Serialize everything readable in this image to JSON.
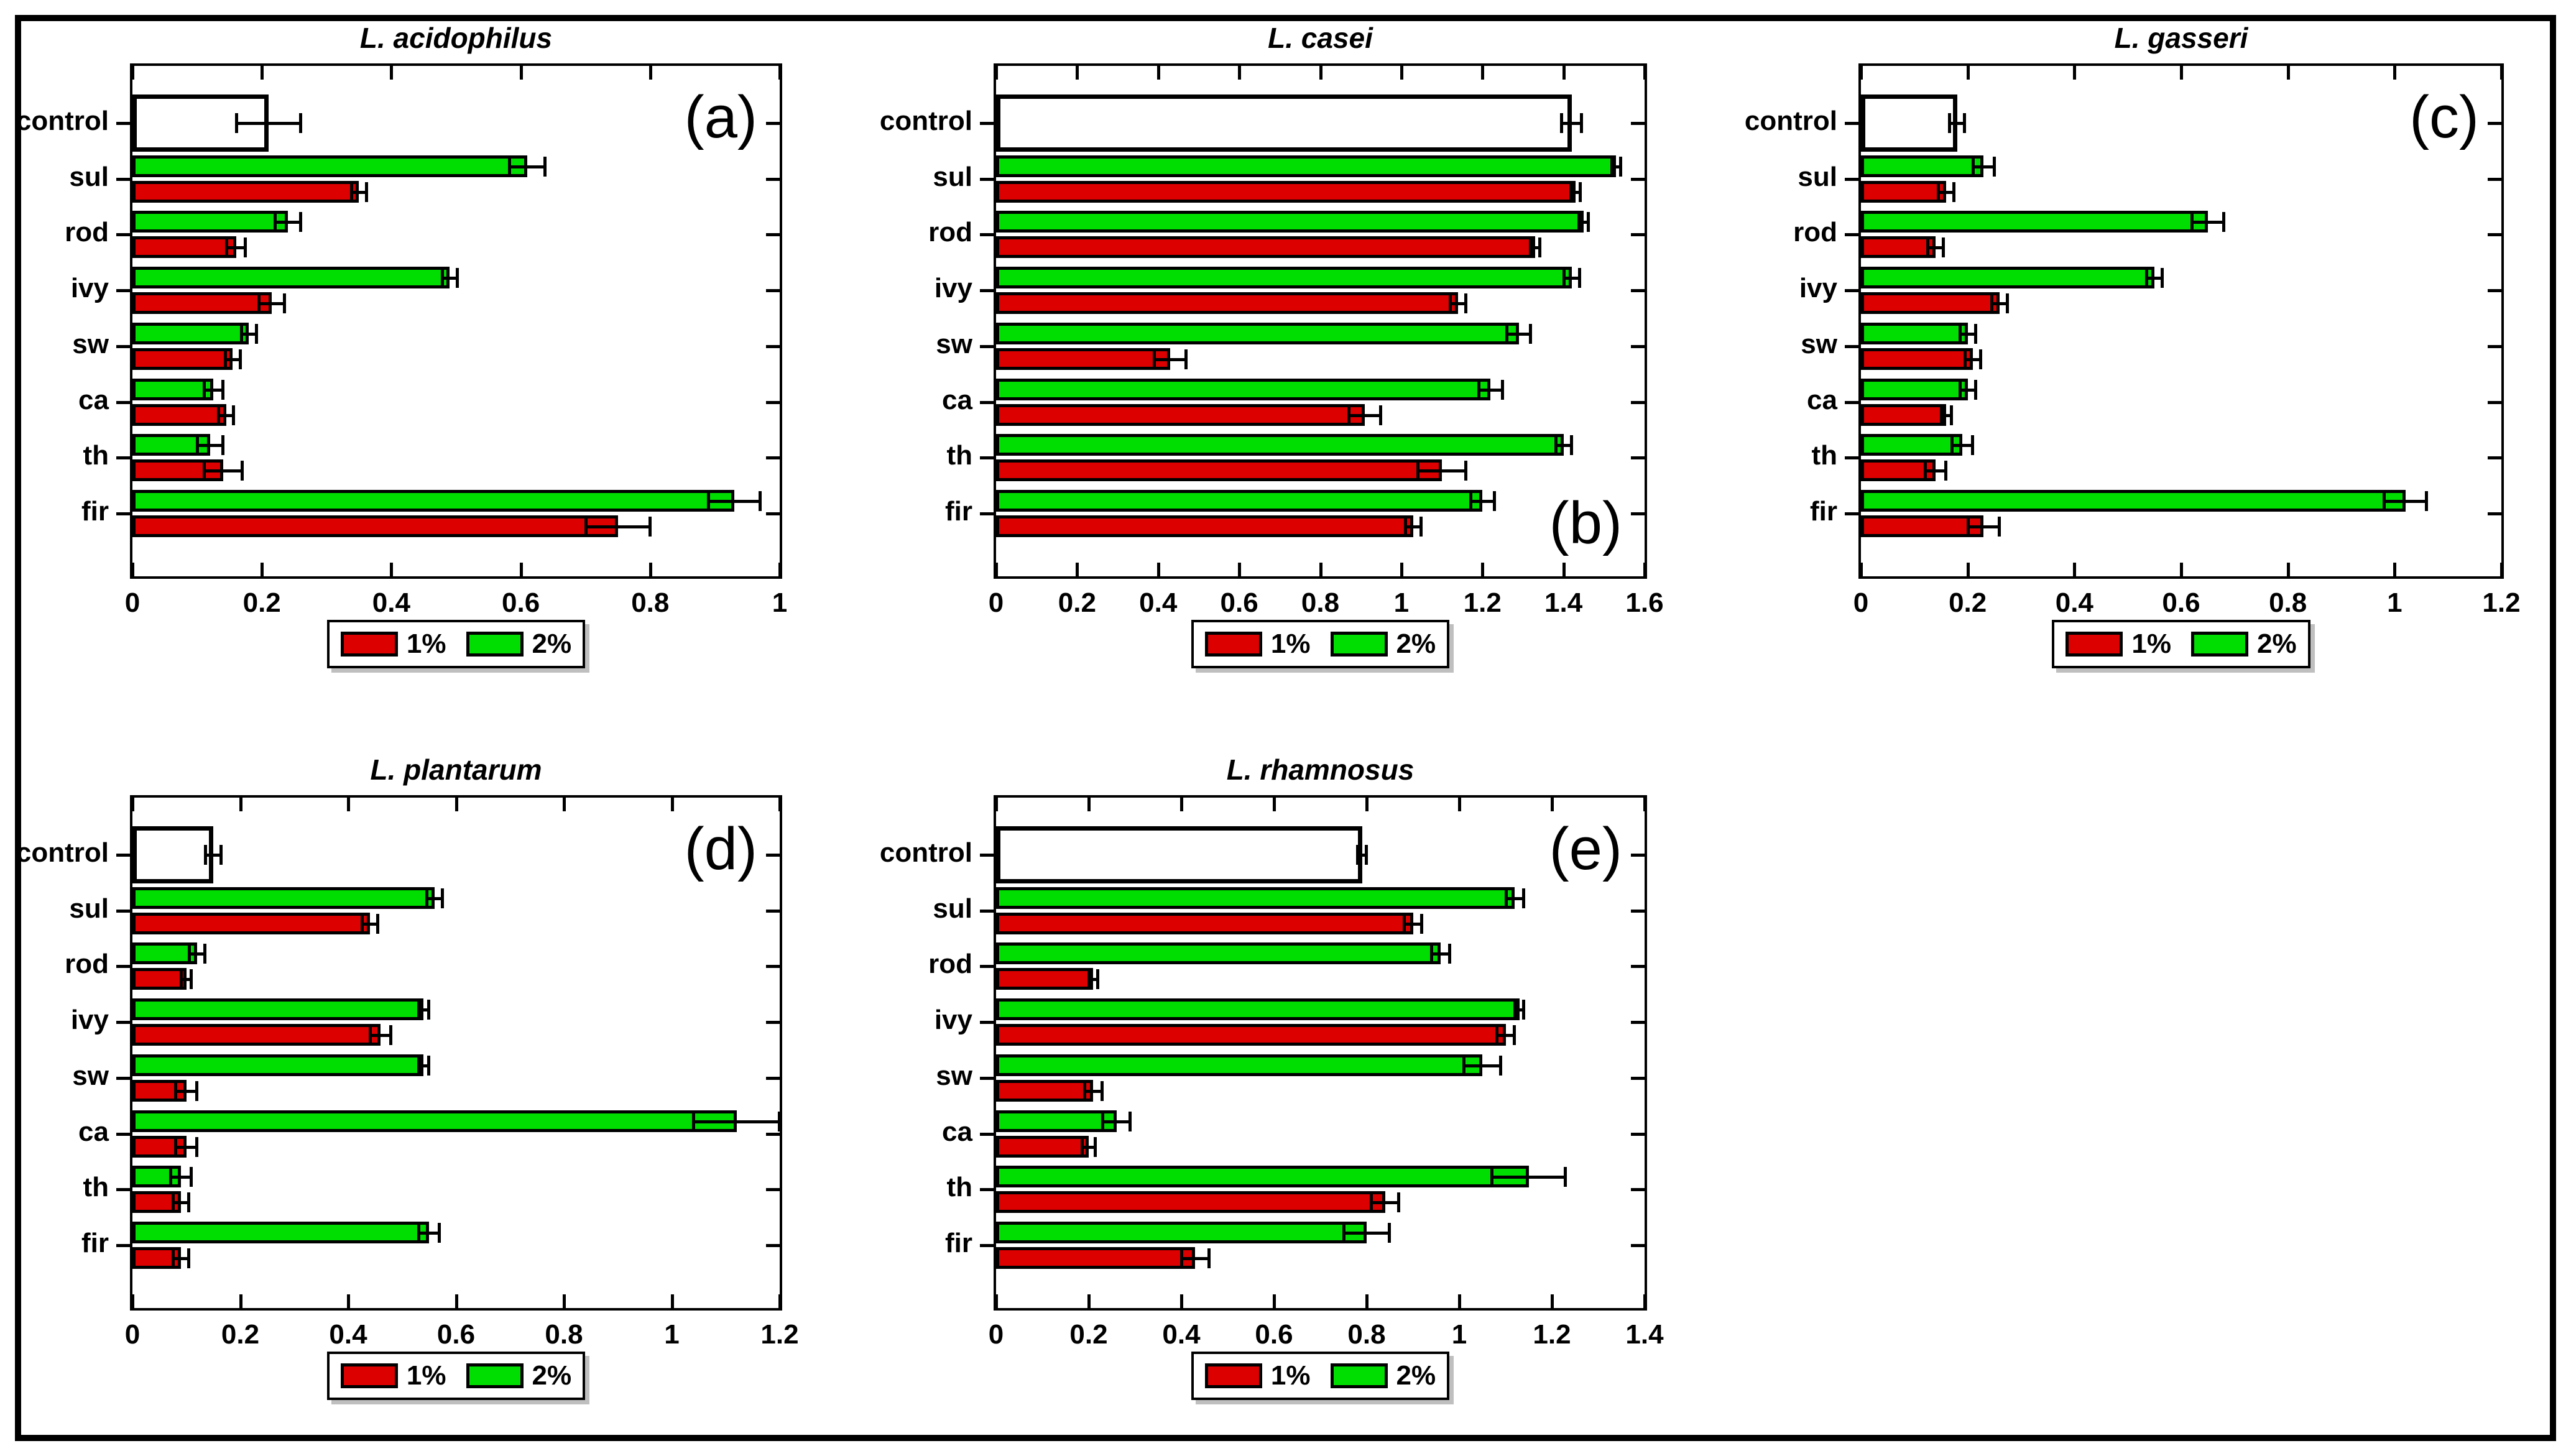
{
  "figure": {
    "background": "#ffffff",
    "border_color": "#000000",
    "series_colors": {
      "one_percent": "#dd0000",
      "two_percent": "#00dd00"
    },
    "control_fill": "#ffffff"
  },
  "legend": {
    "items": [
      {
        "label": "1%",
        "color": "#dd0000"
      },
      {
        "label": "2%",
        "color": "#00dd00"
      }
    ]
  },
  "chart_data": [
    {
      "id": "a",
      "type": "bar",
      "orientation": "horizontal",
      "title": "L. acidophilus",
      "panel_label": "(a)",
      "panel_label_position": "top-right",
      "categories": [
        "control",
        "sul",
        "rod",
        "ivy",
        "sw",
        "ca",
        "th",
        "fir"
      ],
      "xlim": [
        0,
        1
      ],
      "xticks": [
        "0",
        "0.2",
        "0.4",
        "0.6",
        "0.8",
        "1"
      ],
      "grid": false,
      "legend_position": "below-center",
      "control": {
        "value": 0.21,
        "error": 0.05
      },
      "series": [
        {
          "name": "1%",
          "color": "#dd0000",
          "values": [
            null,
            0.35,
            0.16,
            0.215,
            0.155,
            0.145,
            0.14,
            0.75
          ],
          "errors": [
            null,
            0.012,
            0.015,
            0.02,
            0.012,
            0.012,
            0.03,
            0.05
          ]
        },
        {
          "name": "2%",
          "color": "#00dd00",
          "values": [
            null,
            0.61,
            0.24,
            0.49,
            0.18,
            0.125,
            0.12,
            0.93
          ],
          "errors": [
            null,
            0.028,
            0.02,
            0.012,
            0.012,
            0.015,
            0.02,
            0.04
          ]
        }
      ]
    },
    {
      "id": "b",
      "type": "bar",
      "orientation": "horizontal",
      "title": "L. casei",
      "panel_label": "(b)",
      "panel_label_position": "bottom-right",
      "categories": [
        "control",
        "sul",
        "rod",
        "ivy",
        "sw",
        "ca",
        "th",
        "fir"
      ],
      "xlim": [
        0,
        1.6
      ],
      "xticks": [
        "0",
        "0.2",
        "0.4",
        "0.6",
        "0.8",
        "1",
        "1.2",
        "1.4",
        "1.6"
      ],
      "grid": false,
      "legend_position": "below-center",
      "control": {
        "value": 1.42,
        "error": 0.025
      },
      "series": [
        {
          "name": "1%",
          "color": "#dd0000",
          "values": [
            null,
            1.43,
            1.33,
            1.14,
            0.43,
            0.91,
            1.1,
            1.03
          ],
          "errors": [
            null,
            0.012,
            0.012,
            0.02,
            0.04,
            0.04,
            0.06,
            0.02
          ]
        },
        {
          "name": "2%",
          "color": "#00dd00",
          "values": [
            null,
            1.53,
            1.45,
            1.42,
            1.29,
            1.22,
            1.4,
            1.2
          ],
          "errors": [
            null,
            0.012,
            0.012,
            0.02,
            0.03,
            0.03,
            0.02,
            0.03
          ]
        }
      ]
    },
    {
      "id": "c",
      "type": "bar",
      "orientation": "horizontal",
      "title": "L. gasseri",
      "panel_label": "(c)",
      "panel_label_position": "top-right",
      "categories": [
        "control",
        "sul",
        "rod",
        "ivy",
        "sw",
        "ca",
        "th",
        "fir"
      ],
      "xlim": [
        0,
        1.2
      ],
      "xticks": [
        "0",
        "0.2",
        "0.4",
        "0.6",
        "0.8",
        "1",
        "1.2"
      ],
      "grid": false,
      "legend_position": "below-center",
      "control": {
        "value": 0.18,
        "error": 0.015
      },
      "series": [
        {
          "name": "1%",
          "color": "#dd0000",
          "values": [
            null,
            0.16,
            0.14,
            0.26,
            0.21,
            0.16,
            0.14,
            0.23
          ],
          "errors": [
            null,
            0.015,
            0.015,
            0.015,
            0.015,
            0.01,
            0.02,
            0.03
          ]
        },
        {
          "name": "2%",
          "color": "#00dd00",
          "values": [
            null,
            0.23,
            0.65,
            0.55,
            0.2,
            0.2,
            0.19,
            1.02
          ],
          "errors": [
            null,
            0.02,
            0.03,
            0.015,
            0.015,
            0.015,
            0.02,
            0.04
          ]
        }
      ]
    },
    {
      "id": "d",
      "type": "bar",
      "orientation": "horizontal",
      "title": "L. plantarum",
      "panel_label": "(d)",
      "panel_label_position": "top-right",
      "categories": [
        "control",
        "sul",
        "rod",
        "ivy",
        "sw",
        "ca",
        "th",
        "fir"
      ],
      "xlim": [
        0,
        1.2
      ],
      "xticks": [
        "0",
        "0.2",
        "0.4",
        "0.6",
        "0.8",
        "1",
        "1.2"
      ],
      "grid": false,
      "legend_position": "below-center",
      "control": {
        "value": 0.15,
        "error": 0.015
      },
      "series": [
        {
          "name": "1%",
          "color": "#dd0000",
          "values": [
            null,
            0.44,
            0.1,
            0.46,
            0.1,
            0.1,
            0.09,
            0.09
          ],
          "errors": [
            null,
            0.015,
            0.01,
            0.02,
            0.02,
            0.02,
            0.015,
            0.015
          ]
        },
        {
          "name": "2%",
          "color": "#00dd00",
          "values": [
            null,
            0.56,
            0.12,
            0.54,
            0.54,
            1.12,
            0.09,
            0.55
          ],
          "errors": [
            null,
            0.015,
            0.015,
            0.01,
            0.01,
            0.08,
            0.02,
            0.02
          ]
        }
      ]
    },
    {
      "id": "e",
      "type": "bar",
      "orientation": "horizontal",
      "title": "L. rhamnosus",
      "panel_label": "(e)",
      "panel_label_position": "top-right",
      "categories": [
        "control",
        "sul",
        "rod",
        "ivy",
        "sw",
        "ca",
        "th",
        "fir"
      ],
      "xlim": [
        0,
        1.4
      ],
      "xticks": [
        "0",
        "0.2",
        "0.4",
        "0.6",
        "0.8",
        "1",
        "1.2",
        "1.4"
      ],
      "grid": false,
      "legend_position": "below-center",
      "control": {
        "value": 0.79,
        "error": 0.01
      },
      "series": [
        {
          "name": "1%",
          "color": "#dd0000",
          "values": [
            null,
            0.9,
            0.21,
            1.1,
            0.21,
            0.2,
            0.84,
            0.43
          ],
          "errors": [
            null,
            0.02,
            0.01,
            0.02,
            0.02,
            0.015,
            0.03,
            0.03
          ]
        },
        {
          "name": "2%",
          "color": "#00dd00",
          "values": [
            null,
            1.12,
            0.96,
            1.13,
            1.05,
            0.26,
            1.15,
            0.8
          ],
          "errors": [
            null,
            0.02,
            0.02,
            0.01,
            0.04,
            0.03,
            0.08,
            0.05
          ]
        }
      ]
    }
  ]
}
